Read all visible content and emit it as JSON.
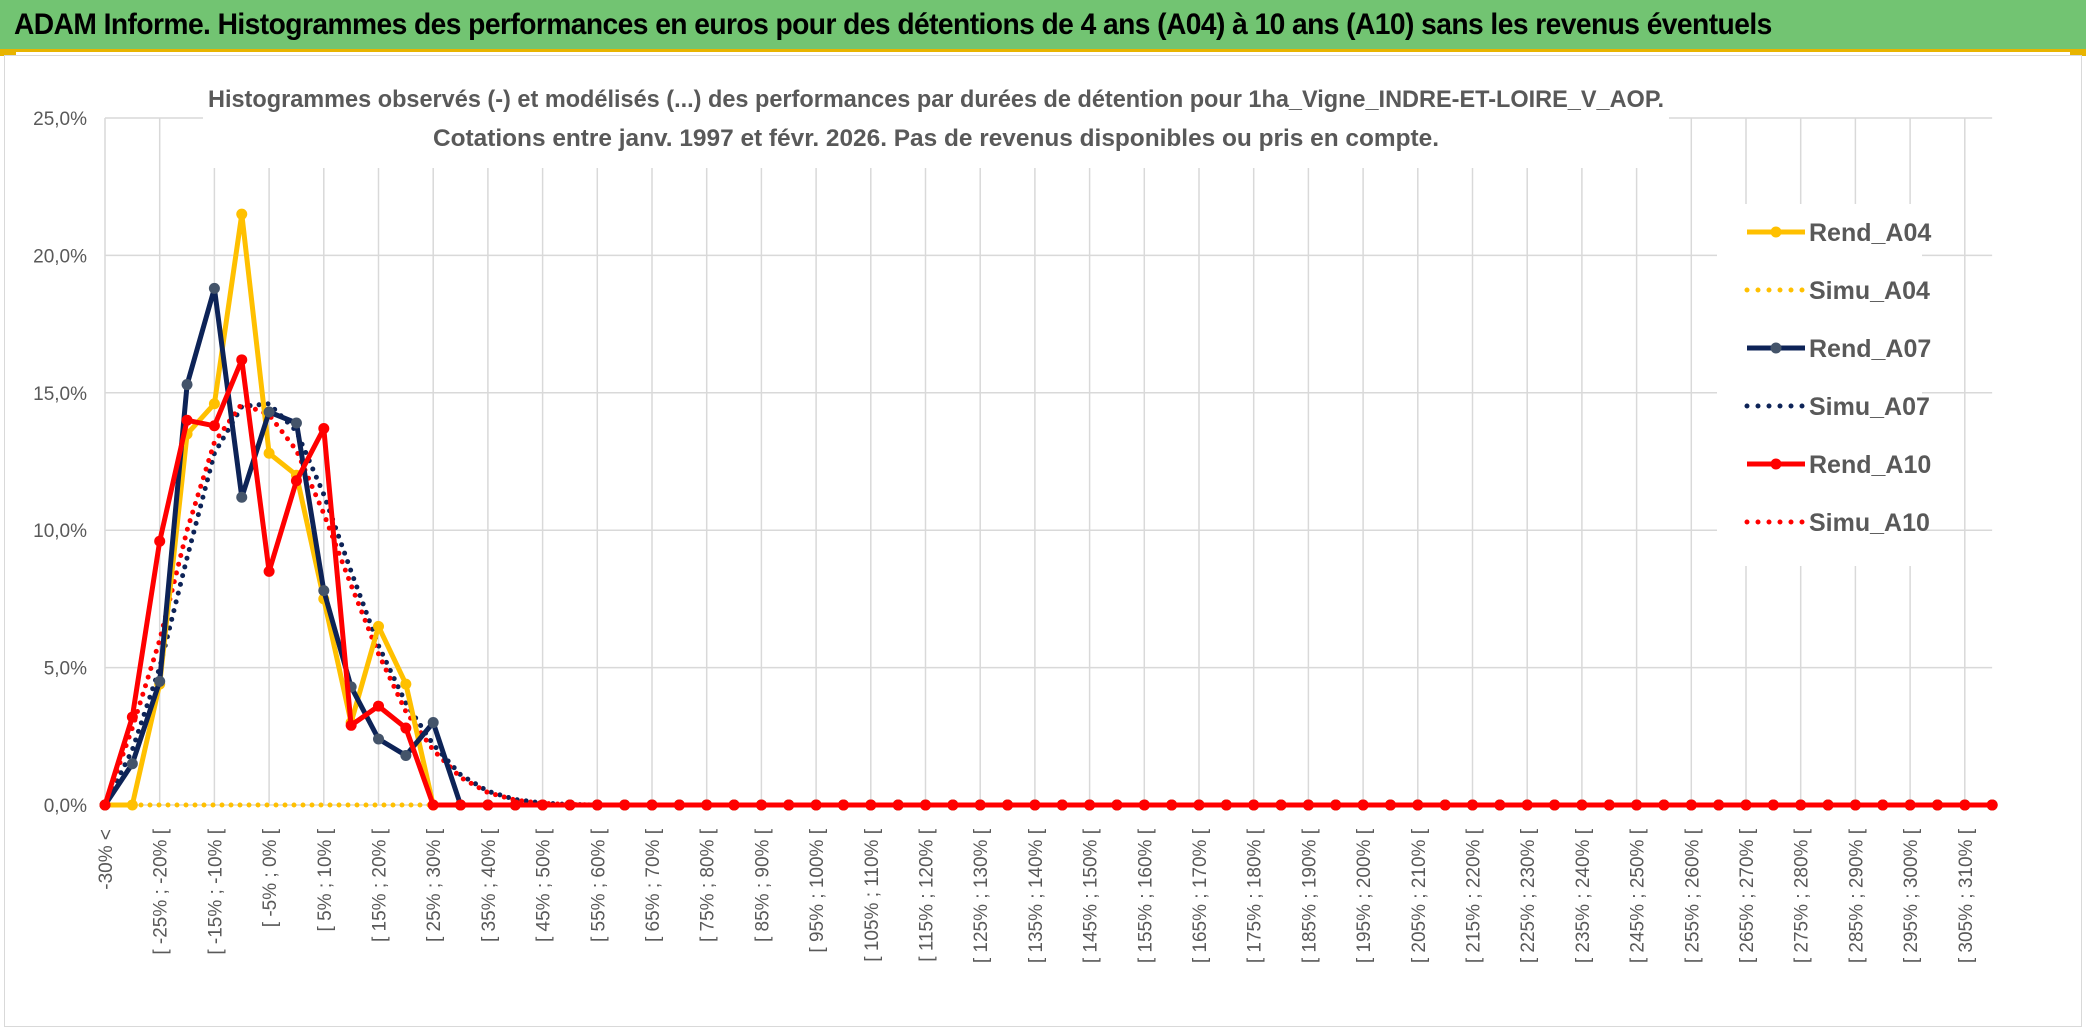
{
  "banner": {
    "title": "ADAM Informe. Histogrammes des performances en euros pour des détentions de 4 ans (A04) à 10 ans (A10) sans les revenus éventuels"
  },
  "colors": {
    "banner_bg": "#72c472",
    "accent": "#e8b400",
    "A04": "#ffc000",
    "A07": "#0d2357",
    "A10": "#ff0000"
  },
  "chart_data": {
    "type": "line",
    "title": "Histogrammes observés (-) et modélisés (...) des performances par durées de détention pour 1ha_Vigne_INDRE-ET-LOIRE_V_AOP.",
    "subtitle": "Cotations entre janv. 1997 et févr. 2026. Pas de revenus disponibles ou pris en compte.",
    "xlabel": "",
    "ylabel": "",
    "ylim": [
      0,
      25
    ],
    "y_ticks": [
      "0,0%",
      "5,0%",
      "10,0%",
      "15,0%",
      "20,0%",
      "25,0%"
    ],
    "grid": true,
    "legend_position": "right",
    "x_tick_labels": [
      "-30% <",
      "[ -25% ; -20% [",
      "[ -15% ; -10% [",
      "[ -5% ; 0% [",
      "[ 5% ; 10% [",
      "[ 15% ; 20% [",
      "[ 25% ; 30% [",
      "[ 35% ; 40% [",
      "[ 45% ; 50% [",
      "[ 55% ; 60% [",
      "[ 65% ; 70% [",
      "[ 75% ; 80% [",
      "[ 85% ; 90% [",
      "[ 95% ; 100% [",
      "[ 105% ; 110% [",
      "[ 115% ; 120% [",
      "[ 125% ; 130% [",
      "[ 135% ; 140% [",
      "[ 145% ; 150% [",
      "[ 155% ; 160% [",
      "[ 165% ; 170% [",
      "[ 175% ; 180% [",
      "[ 185% ; 190% [",
      "[ 195% ; 200% [",
      "[ 205% ; 210% [",
      "[ 215% ; 220% [",
      "[ 225% ; 230% [",
      "[ 235% ; 240% [",
      "[ 245% ; 250% [",
      "[ 255% ; 260% [",
      "[ 265% ; 270% [",
      "[ 275% ; 280% [",
      "[ 285% ; 290% [",
      "[ 295% ; 300% [",
      "[ 305% ; 310% ["
    ],
    "series": [
      {
        "name": "Rend_A04",
        "style": "solid",
        "color": "#ffc000",
        "markers": true,
        "values": [
          0,
          0,
          4.4,
          13.5,
          14.6,
          21.5,
          12.8,
          12.0,
          7.5,
          3.0,
          6.5,
          4.4,
          0
        ]
      },
      {
        "name": "Simu_A04",
        "style": "dotted",
        "color": "#ffc000",
        "markers": false,
        "values": [
          0,
          0,
          0,
          0,
          0,
          0,
          0,
          0,
          0,
          0,
          0,
          0
        ]
      },
      {
        "name": "Rend_A07",
        "style": "solid",
        "color": "#0d2357",
        "markers": true,
        "values": [
          0,
          1.5,
          4.5,
          15.3,
          18.8,
          11.2,
          14.3,
          13.9,
          7.8,
          4.3,
          2.4,
          1.8,
          3.0,
          0
        ]
      },
      {
        "name": "Simu_A07",
        "style": "dotted",
        "color": "#0d2357",
        "markers": false,
        "values": [
          0,
          2.0,
          5.0,
          9.0,
          12.8,
          14.5,
          14.6,
          13.6,
          11.3,
          8.5,
          5.8,
          3.7,
          2.2,
          1.1,
          0.5,
          0.2,
          0.07,
          0.02
        ]
      },
      {
        "name": "Rend_A10",
        "style": "solid",
        "color": "#ff0000",
        "markers": true,
        "values": [
          0,
          3.2,
          9.6,
          14.0,
          13.8,
          16.2,
          8.5,
          11.8,
          13.7,
          2.9,
          3.6,
          2.8,
          0
        ]
      },
      {
        "name": "Simu_A10",
        "style": "dotted",
        "color": "#ff0000",
        "markers": false,
        "values": [
          0,
          2.8,
          6.0,
          10.0,
          13.2,
          14.6,
          14.2,
          12.9,
          10.6,
          8.0,
          5.5,
          3.4,
          2.0,
          1.0,
          0.45,
          0.18,
          0.06,
          0.02
        ]
      }
    ]
  }
}
